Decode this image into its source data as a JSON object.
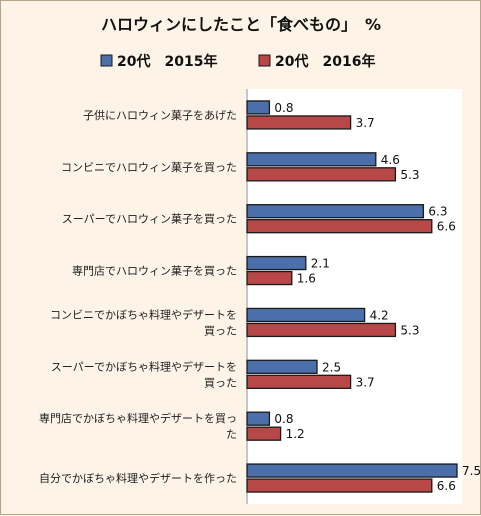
{
  "chart_data": {
    "type": "bar",
    "orientation": "horizontal",
    "title": "ハロウィンにしたこと「食べもの」　%",
    "categories": [
      [
        "子供にハロウィン菓子をあげた"
      ],
      [
        "コンビニでハロウィン菓子を買った"
      ],
      [
        "スーパーでハロウィン菓子を買った"
      ],
      [
        "専門店でハロウィン菓子を買った"
      ],
      [
        "コンビニでかぼちゃ料理やデザートを",
        "買った"
      ],
      [
        "スーパーでかぼちゃ料理やデザートを",
        "買った"
      ],
      [
        "専門店でかぼちゃ料理やデザートを買っ",
        "た"
      ],
      [
        "自分でかぼちゃ料理やデザートを作った"
      ]
    ],
    "series": [
      {
        "name": "20代　2015年",
        "color": "#4a6fab",
        "values": [
          0.8,
          4.6,
          6.3,
          2.1,
          4.2,
          2.5,
          0.8,
          7.5
        ]
      },
      {
        "name": "20代　2016年",
        "color": "#b84747",
        "values": [
          3.7,
          5.3,
          6.6,
          1.6,
          5.3,
          3.7,
          1.2,
          6.6
        ]
      }
    ],
    "value_labels": [
      [
        "0.8",
        "4.6",
        "6.3",
        "2.1",
        "4.2",
        "2.5",
        "0.8",
        "7.5"
      ],
      [
        "3.7",
        "5.3",
        "6.6",
        "1.6",
        "5.3",
        "3.7",
        "1.2",
        "6.6"
      ]
    ],
    "xlim": [
      0,
      7.5
    ],
    "legend_position": "top",
    "grid": false
  }
}
